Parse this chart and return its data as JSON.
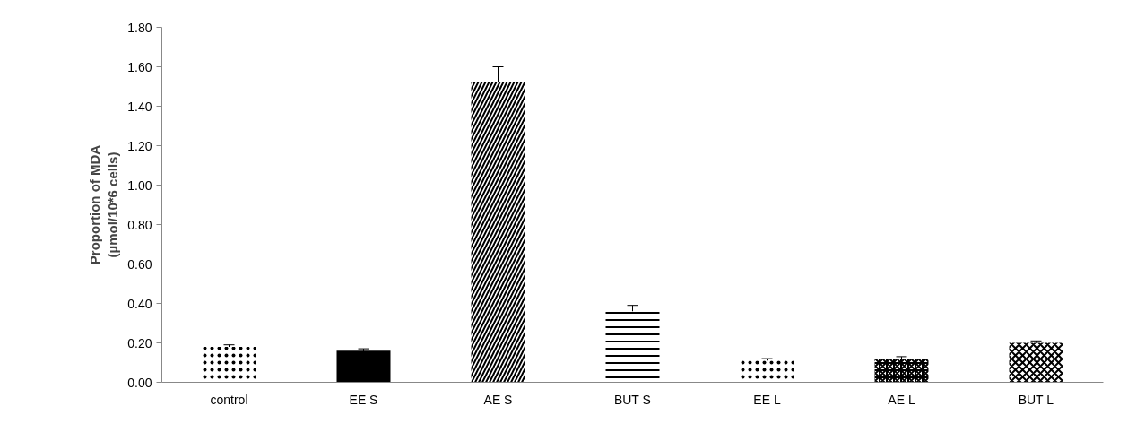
{
  "chart_data": {
    "type": "bar",
    "ylabel": "Proportion of MDA\n(µmol/10*6 cells)",
    "categories": [
      "control",
      "EE S",
      "AE S",
      "BUT S",
      "EE L",
      "AE L",
      "BUT L"
    ],
    "values": [
      0.18,
      0.16,
      1.52,
      0.36,
      0.11,
      0.12,
      0.2
    ],
    "errors": [
      0.01,
      0.01,
      0.08,
      0.03,
      0.01,
      0.01,
      0.01
    ],
    "colors": [
      "#000000",
      "#000000",
      "#000000",
      "#000000",
      "#000000",
      "#000000",
      "#000000"
    ],
    "ylim": [
      0,
      1.8
    ],
    "yticks": [
      {
        "value": 0,
        "label": "0.00"
      },
      {
        "value": 0.2,
        "label": "0.20"
      },
      {
        "value": 0.4,
        "label": "0.40"
      },
      {
        "value": 0.6,
        "label": "0.60"
      },
      {
        "value": 0.8,
        "label": "0.80"
      },
      {
        "value": 1.0,
        "label": "1.00"
      },
      {
        "value": 1.2,
        "label": "1.20"
      },
      {
        "value": 1.4,
        "label": "1.40"
      },
      {
        "value": 1.6,
        "label": "1.60"
      },
      {
        "value": 1.8,
        "label": "1.80"
      }
    ],
    "grid": false
  }
}
